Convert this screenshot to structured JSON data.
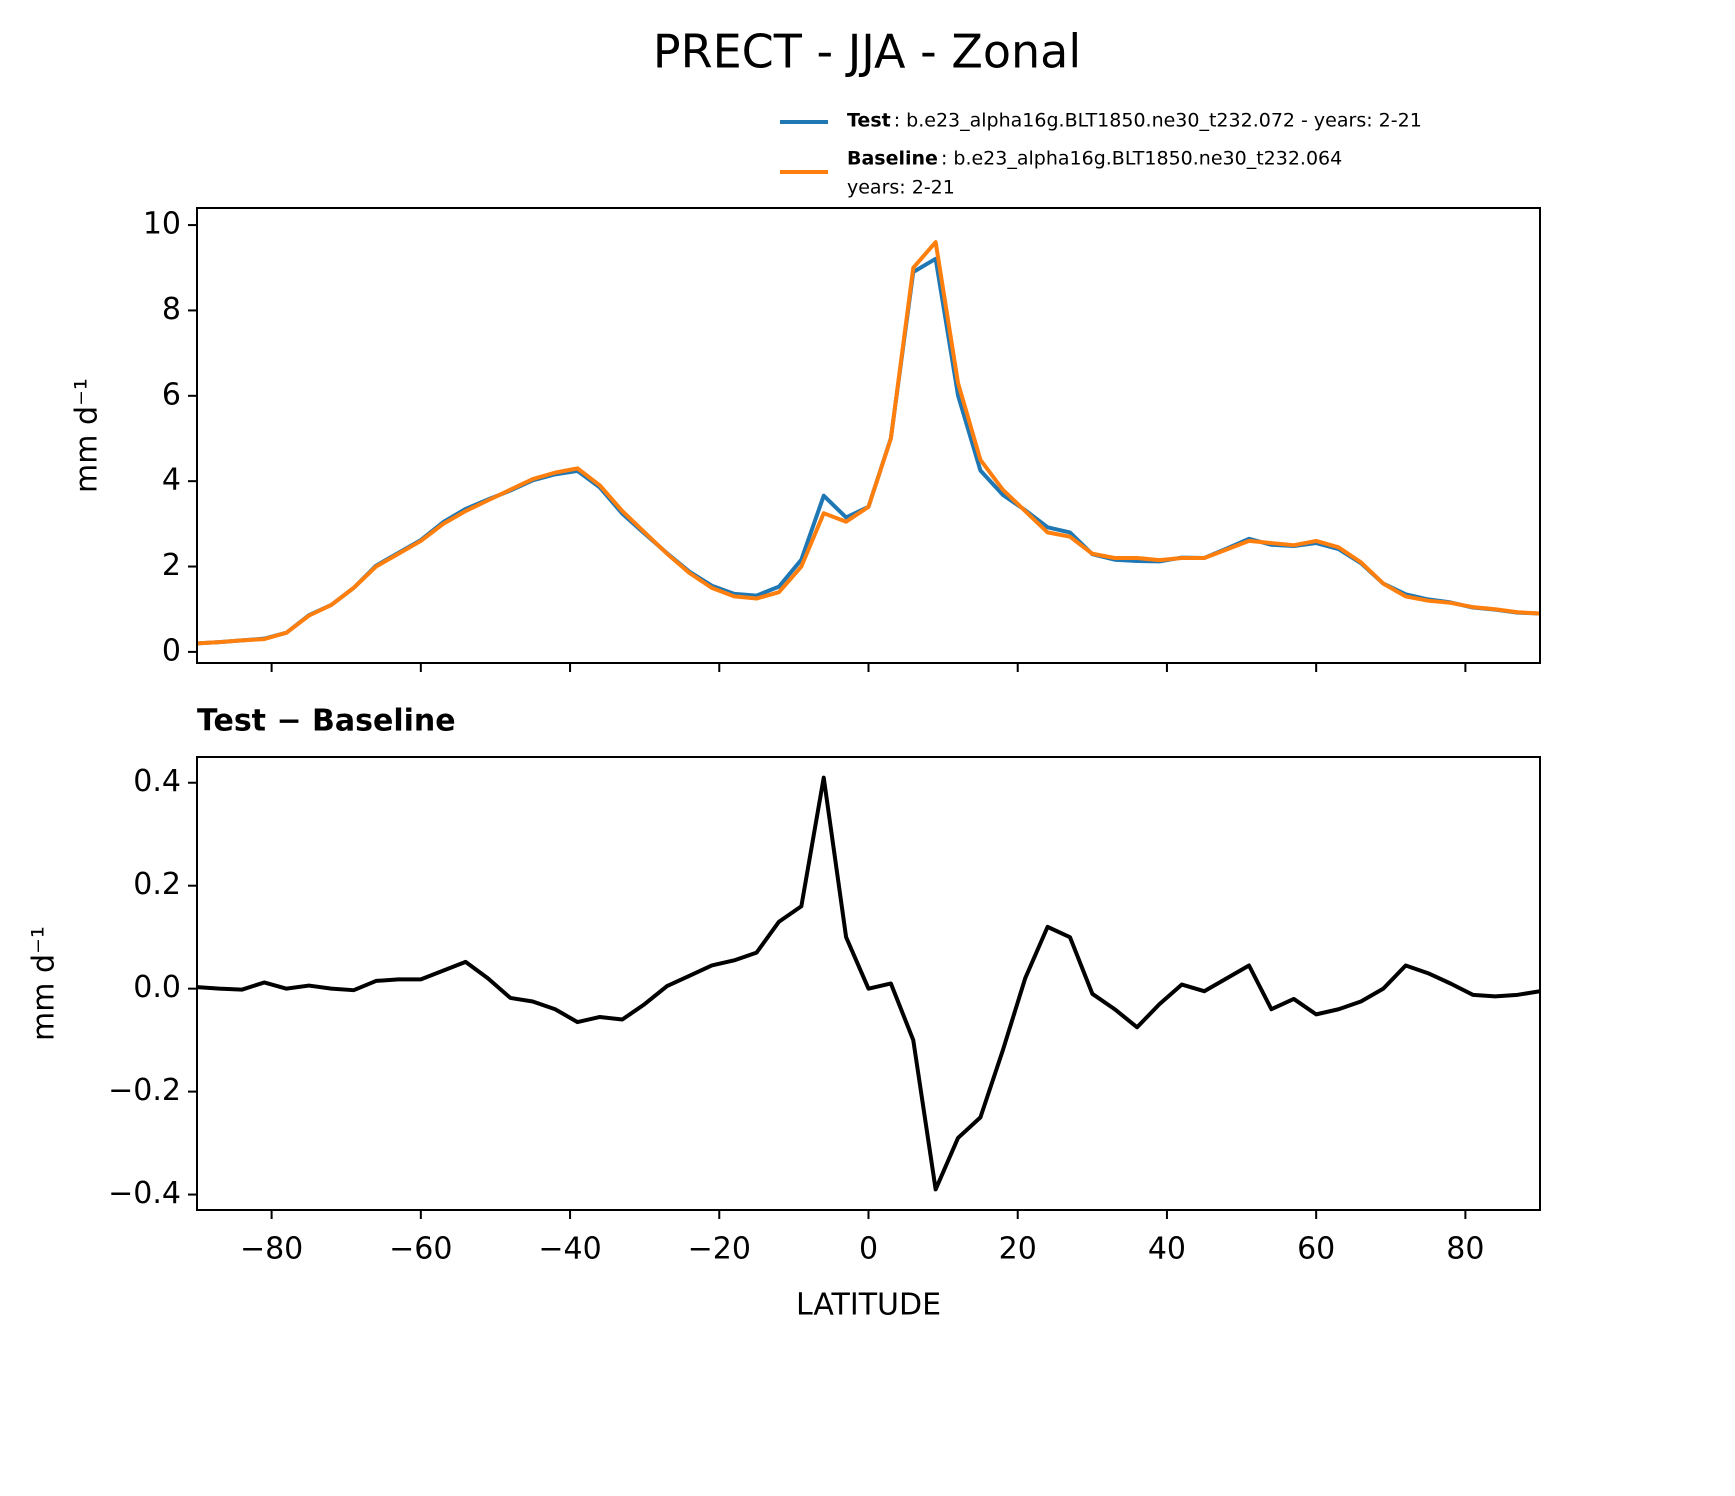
{
  "chart_data": [
    {
      "type": "line",
      "title": "PRECT - JJA - Zonal",
      "ylabel": "mm d⁻¹",
      "x": [
        -90,
        -87,
        -84,
        -81,
        -78,
        -75,
        -72,
        -69,
        -66,
        -63,
        -60,
        -57,
        -54,
        -51,
        -48,
        -45,
        -42,
        -39,
        -36,
        -33,
        -30,
        -27,
        -24,
        -21,
        -18,
        -15,
        -12,
        -9,
        -6,
        -3,
        0,
        3,
        6,
        9,
        12,
        15,
        18,
        21,
        24,
        27,
        30,
        33,
        36,
        39,
        42,
        45,
        48,
        51,
        54,
        57,
        60,
        63,
        66,
        69,
        72,
        75,
        78,
        81,
        84,
        87,
        90
      ],
      "series": [
        {
          "name": "Test",
          "detail": [
            ": b.e23_alpha16g.BLT1850.ne30_t232.072 - years: 2-21"
          ],
          "color": "#1f77b4",
          "values": [
            0.2,
            0.23,
            0.27,
            0.31,
            0.45,
            0.86,
            1.1,
            1.5,
            2.02,
            2.32,
            2.62,
            3.04,
            3.35,
            3.57,
            3.78,
            4.02,
            4.16,
            4.24,
            3.85,
            3.24,
            2.77,
            2.31,
            1.88,
            1.55,
            1.36,
            1.32,
            1.53,
            2.16,
            3.66,
            3.15,
            3.4,
            5.01,
            8.9,
            9.21,
            6.01,
            4.25,
            3.68,
            3.32,
            2.92,
            2.8,
            2.29,
            2.16,
            2.13,
            2.12,
            2.21,
            2.2,
            2.42,
            2.65,
            2.51,
            2.48,
            2.55,
            2.41,
            2.08,
            1.6,
            1.35,
            1.23,
            1.16,
            1.04,
            0.99,
            0.92,
            0.9
          ]
        },
        {
          "name": "Baseline",
          "detail": [
            ": b.e23_alpha16g.BLT1850.ne30_t232.064",
            "years: 2-21"
          ],
          "color": "#ff7f0e",
          "values": [
            0.2,
            0.23,
            0.27,
            0.3,
            0.45,
            0.85,
            1.1,
            1.5,
            2.0,
            2.3,
            2.6,
            3.0,
            3.3,
            3.55,
            3.8,
            4.05,
            4.2,
            4.3,
            3.9,
            3.3,
            2.8,
            2.3,
            1.85,
            1.5,
            1.3,
            1.25,
            1.4,
            2.0,
            3.25,
            3.05,
            3.4,
            5.0,
            9.0,
            9.6,
            6.3,
            4.5,
            3.8,
            3.3,
            2.8,
            2.7,
            2.3,
            2.2,
            2.2,
            2.15,
            2.2,
            2.2,
            2.4,
            2.6,
            2.55,
            2.5,
            2.6,
            2.45,
            2.1,
            1.6,
            1.3,
            1.2,
            1.15,
            1.05,
            1.0,
            0.93,
            0.9
          ]
        }
      ],
      "xlim": [
        -90,
        90
      ],
      "xticks": [
        -80,
        -60,
        -40,
        -20,
        0,
        20,
        40,
        60,
        80
      ],
      "ylim": [
        -0.26,
        10.4
      ],
      "yticks": [
        0,
        2,
        4,
        6,
        8,
        10
      ]
    },
    {
      "type": "line",
      "title": "Test − Baseline",
      "ylabel": "mm d⁻¹",
      "xlabel": "LATITUDE",
      "color": "#000000",
      "x": [
        -90,
        -87,
        -84,
        -81,
        -78,
        -75,
        -72,
        -69,
        -66,
        -63,
        -60,
        -57,
        -54,
        -51,
        -48,
        -45,
        -42,
        -39,
        -36,
        -33,
        -30,
        -27,
        -24,
        -21,
        -18,
        -15,
        -12,
        -9,
        -6,
        -3,
        0,
        3,
        6,
        9,
        12,
        15,
        18,
        21,
        24,
        27,
        30,
        33,
        36,
        39,
        42,
        45,
        48,
        51,
        54,
        57,
        60,
        63,
        66,
        69,
        72,
        75,
        78,
        81,
        84,
        87,
        90
      ],
      "values": [
        0.003,
        0.0,
        -0.002,
        0.012,
        0.0,
        0.006,
        0.0,
        -0.003,
        0.015,
        0.018,
        0.018,
        0.035,
        0.052,
        0.02,
        -0.018,
        -0.025,
        -0.04,
        -0.065,
        -0.055,
        -0.06,
        -0.03,
        0.005,
        0.025,
        0.045,
        0.055,
        0.07,
        0.13,
        0.16,
        0.41,
        0.1,
        0.0,
        0.01,
        -0.1,
        -0.39,
        -0.29,
        -0.25,
        -0.12,
        0.02,
        0.12,
        0.1,
        -0.01,
        -0.04,
        -0.075,
        -0.03,
        0.008,
        -0.005,
        0.02,
        0.045,
        -0.04,
        -0.02,
        -0.05,
        -0.04,
        -0.025,
        0.0,
        0.045,
        0.03,
        0.01,
        -0.012,
        -0.015,
        -0.012,
        -0.005
      ],
      "xlim": [
        -90,
        90
      ],
      "xticks": [
        {
          "value": -80,
          "label": "−80"
        },
        {
          "value": -60,
          "label": "−60"
        },
        {
          "value": -40,
          "label": "−40"
        },
        {
          "value": -20,
          "label": "−20"
        },
        0,
        20,
        40,
        60,
        80
      ],
      "ylim": [
        -0.43,
        0.45
      ],
      "yticks": [
        {
          "value": -0.4,
          "label": "−0.4"
        },
        {
          "value": -0.2,
          "label": "−0.2"
        },
        {
          "value": 0,
          "label": "0.0"
        },
        0.2,
        0.4
      ]
    }
  ]
}
